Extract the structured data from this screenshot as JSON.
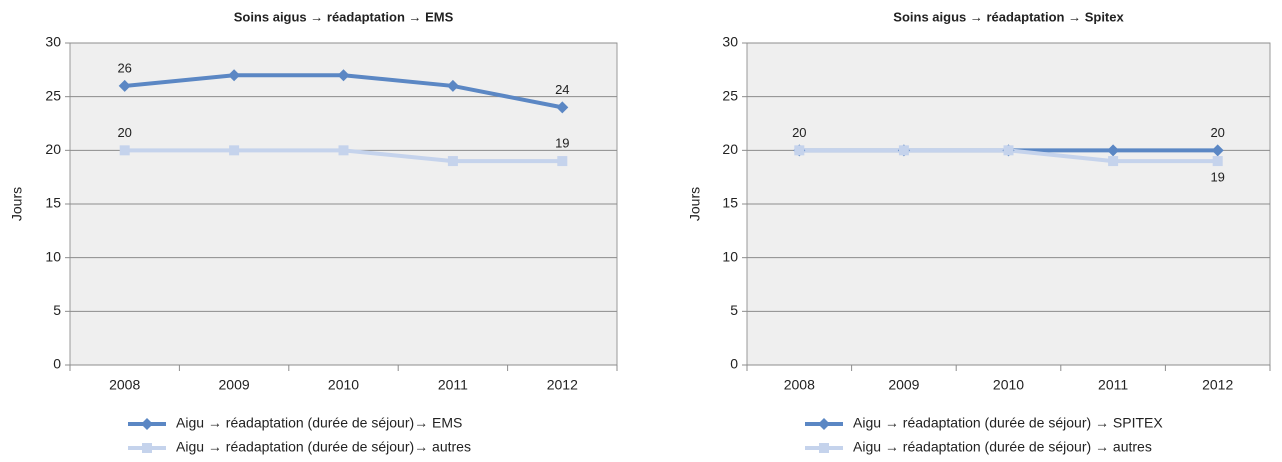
{
  "chart_data": [
    {
      "type": "line",
      "title": "Soins aigus → réadaptation → EMS",
      "y_label": "Jours",
      "categories": [
        "2008",
        "2009",
        "2010",
        "2011",
        "2012"
      ],
      "ylim": [
        0,
        30
      ],
      "yticks": [
        0,
        5,
        10,
        15,
        20,
        25,
        30
      ],
      "grid": true,
      "series": [
        {
          "name": "Aigu → réadaptation (durée de séjour)→ EMS",
          "color": "#5b87c4",
          "marker": "diamond",
          "values": [
            26,
            27,
            27,
            26,
            24
          ],
          "value_labels": [
            "26",
            null,
            null,
            null,
            "24"
          ],
          "label_position": "above"
        },
        {
          "name": "Aigu → réadaptation (durée de séjour)→ autres",
          "color": "#c5d3ec",
          "marker": "square",
          "values": [
            20,
            20,
            20,
            19,
            19
          ],
          "value_labels": [
            "20",
            null,
            null,
            null,
            "19"
          ],
          "label_position": "above"
        }
      ]
    },
    {
      "type": "line",
      "title": "Soins aigus → réadaptation → Spitex",
      "y_label": "Jours",
      "categories": [
        "2008",
        "2009",
        "2010",
        "2011",
        "2012"
      ],
      "ylim": [
        0,
        30
      ],
      "yticks": [
        0,
        5,
        10,
        15,
        20,
        25,
        30
      ],
      "grid": true,
      "series": [
        {
          "name": "Aigu → réadaptation (durée de séjour) → SPITEX",
          "color": "#5b87c4",
          "marker": "diamond",
          "values": [
            20,
            20,
            20,
            20,
            20
          ],
          "value_labels": [
            "20",
            null,
            null,
            null,
            "20"
          ],
          "label_position": "above"
        },
        {
          "name": "Aigu → réadaptation (durée de séjour) → autres",
          "color": "#c5d3ec",
          "marker": "square",
          "values": [
            20,
            20,
            20,
            19,
            19
          ],
          "value_labels": [
            null,
            null,
            null,
            null,
            "19"
          ],
          "label_position": "below"
        }
      ]
    }
  ]
}
